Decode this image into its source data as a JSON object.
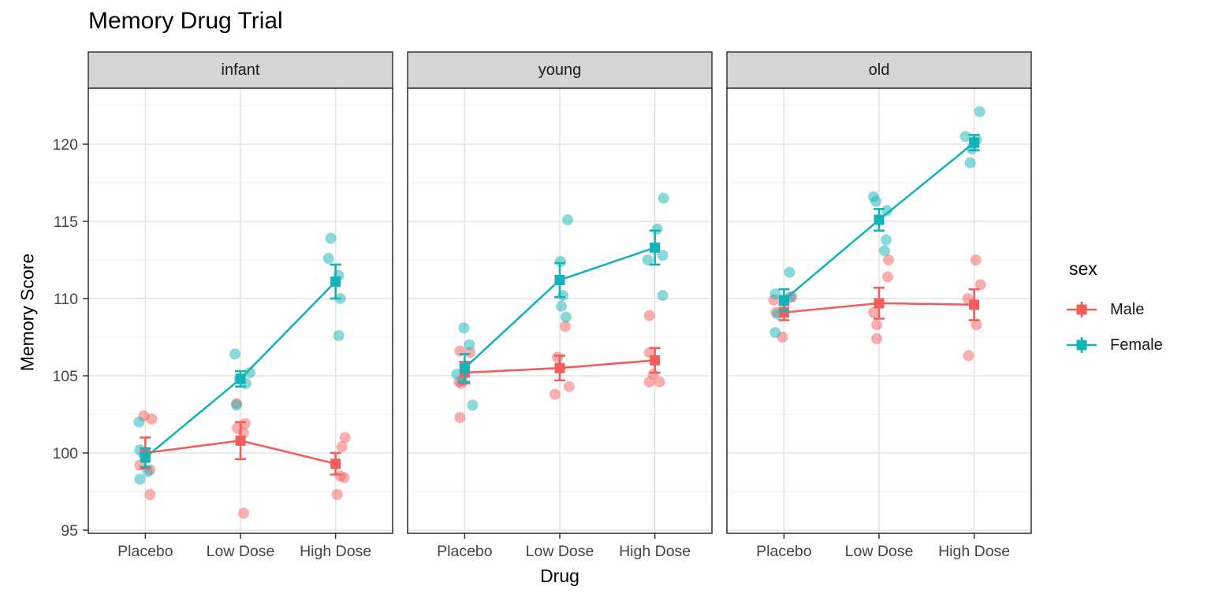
{
  "chart_data": {
    "type": "line",
    "subtype": "faceted pointrange with jittered scatter",
    "title": "Memory Drug Trial",
    "xlabel": "Drug",
    "ylabel": "Memory Score",
    "categories": [
      "Placebo",
      "Low Dose",
      "High Dose"
    ],
    "y_ticks": [
      95,
      100,
      105,
      110,
      115,
      120
    ],
    "y_minor_ticks": [
      97.5,
      102.5,
      107.5,
      112.5,
      117.5,
      122.5
    ],
    "ylim": [
      94.8,
      123.5
    ],
    "grid": "on",
    "legend": {
      "title": "sex",
      "position": "right",
      "items": [
        "Male",
        "Female"
      ]
    },
    "colors": {
      "Male": "#F15F5D",
      "Female": "#16B3B6"
    },
    "point_alpha": 0.5,
    "facets": [
      {
        "label": "infant",
        "series": [
          {
            "name": "Male",
            "means": [
              100.0,
              100.8,
              99.3
            ],
            "se": [
              1.0,
              1.2,
              0.7
            ],
            "points": [
              [
                [
                  -2,
                  102.4
                ],
                [
                  8,
                  102.2
                ],
                [
                  -7,
                  99.2
                ],
                [
                  6,
                  98.9
                ],
                [
                  6,
                  97.3
                ]
              ],
              [
                [
                  -5,
                  103.2
                ],
                [
                  6,
                  101.9
                ],
                [
                  -4,
                  101.6
                ],
                [
                  4,
                  101.3
                ],
                [
                  4,
                  96.1
                ]
              ],
              [
                [
                  12,
                  101.0
                ],
                [
                  8,
                  100.4
                ],
                [
                  6,
                  98.5
                ],
                [
                  11,
                  98.4
                ],
                [
                  2,
                  97.3
                ]
              ]
            ]
          },
          {
            "name": "Female",
            "means": [
              99.7,
              104.8,
              111.1
            ],
            "se": [
              0.6,
              0.5,
              1.1
            ],
            "points": [
              [
                [
                  -8,
                  102.0
                ],
                [
                  -7,
                  100.2
                ],
                [
                  -2,
                  99.9
                ],
                [
                  3,
                  98.8
                ],
                [
                  -7,
                  98.3
                ]
              ],
              [
                [
                  -7,
                  106.4
                ],
                [
                  12,
                  105.2
                ],
                [
                  -1,
                  104.8
                ],
                [
                  7,
                  104.5
                ],
                [
                  -5,
                  103.1
                ]
              ],
              [
                [
                  -6,
                  113.9
                ],
                [
                  -9,
                  112.6
                ],
                [
                  4,
                  111.5
                ],
                [
                  6,
                  110.0
                ],
                [
                  4,
                  107.6
                ]
              ]
            ]
          }
        ]
      },
      {
        "label": "young",
        "series": [
          {
            "name": "Male",
            "means": [
              105.2,
              105.5,
              106.0
            ],
            "se": [
              0.7,
              0.8,
              0.8
            ],
            "points": [
              [
                [
                  -6,
                  106.6
                ],
                [
                  7,
                  106.5
                ],
                [
                  -7,
                  104.6
                ],
                [
                  -4,
                  104.5
                ],
                [
                  -6,
                  102.3
                ]
              ],
              [
                [
                  7,
                  108.2
                ],
                [
                  -3,
                  106.2
                ],
                [
                  0,
                  105.5
                ],
                [
                  12,
                  104.3
                ],
                [
                  -6,
                  103.8
                ]
              ],
              [
                [
                  -7,
                  108.9
                ],
                [
                  -7,
                  106.5
                ],
                [
                  -2,
                  105.1
                ],
                [
                  -7,
                  104.6
                ],
                [
                  6,
                  104.6
                ]
              ]
            ]
          },
          {
            "name": "Female",
            "means": [
              105.5,
              111.2,
              113.3
            ],
            "se": [
              0.9,
              1.1,
              1.1
            ],
            "points": [
              [
                [
                  -1,
                  108.1
                ],
                [
                  6,
                  107.0
                ],
                [
                  -10,
                  105.1
                ],
                [
                  -3,
                  104.7
                ],
                [
                  10,
                  103.1
                ]
              ],
              [
                [
                  10,
                  115.1
                ],
                [
                  1,
                  112.4
                ],
                [
                  4,
                  110.2
                ],
                [
                  2,
                  109.5
                ],
                [
                  8,
                  108.8
                ]
              ],
              [
                [
                  11,
                  116.5
                ],
                [
                  3,
                  114.5
                ],
                [
                  10,
                  112.8
                ],
                [
                  -9,
                  112.5
                ],
                [
                  10,
                  110.2
                ]
              ]
            ]
          }
        ]
      },
      {
        "label": "old",
        "series": [
          {
            "name": "Male",
            "means": [
              109.1,
              109.7,
              109.6
            ],
            "se": [
              0.5,
              1.0,
              1.0
            ],
            "points": [
              [
                [
                  10,
                  110.1
                ],
                [
                  -13,
                  109.9
                ],
                [
                  -10,
                  109.1
                ],
                [
                  0,
                  109.6
                ],
                [
                  -2,
                  107.5
                ]
              ],
              [
                [
                  12,
                  112.5
                ],
                [
                  11,
                  111.4
                ],
                [
                  -7,
                  109.1
                ],
                [
                  -3,
                  108.3
                ],
                [
                  -3,
                  107.4
                ]
              ],
              [
                [
                  2,
                  112.5
                ],
                [
                  8,
                  110.9
                ],
                [
                  -8,
                  110.0
                ],
                [
                  3,
                  108.3
                ],
                [
                  -7,
                  106.3
                ]
              ]
            ]
          },
          {
            "name": "Female",
            "means": [
              109.9,
              115.1,
              120.1
            ],
            "se": [
              0.7,
              0.7,
              0.5
            ],
            "points": [
              [
                [
                  7,
                  111.7
                ],
                [
                  -11,
                  110.3
                ],
                [
                  8,
                  110.1
                ],
                [
                  -8,
                  109.0
                ],
                [
                  -11,
                  107.8
                ]
              ],
              [
                [
                  -7,
                  116.6
                ],
                [
                  -4,
                  116.3
                ],
                [
                  10,
                  115.7
                ],
                [
                  9,
                  113.8
                ],
                [
                  7,
                  113.1
                ]
              ],
              [
                [
                  7,
                  122.1
                ],
                [
                  -11,
                  120.5
                ],
                [
                  3,
                  120.3
                ],
                [
                  -3,
                  119.7
                ],
                [
                  -5,
                  118.8
                ]
              ]
            ]
          }
        ]
      }
    ],
    "theme": {
      "strip_fill": "#D5D5D5",
      "strip_border": "#2b2b2b",
      "panel_border": "#2b2b2b",
      "grid_major": "#E3E3E3",
      "grid_minor": "#EFEFEF",
      "tick_color": "#333333",
      "tick_label_color": "#444444"
    }
  }
}
